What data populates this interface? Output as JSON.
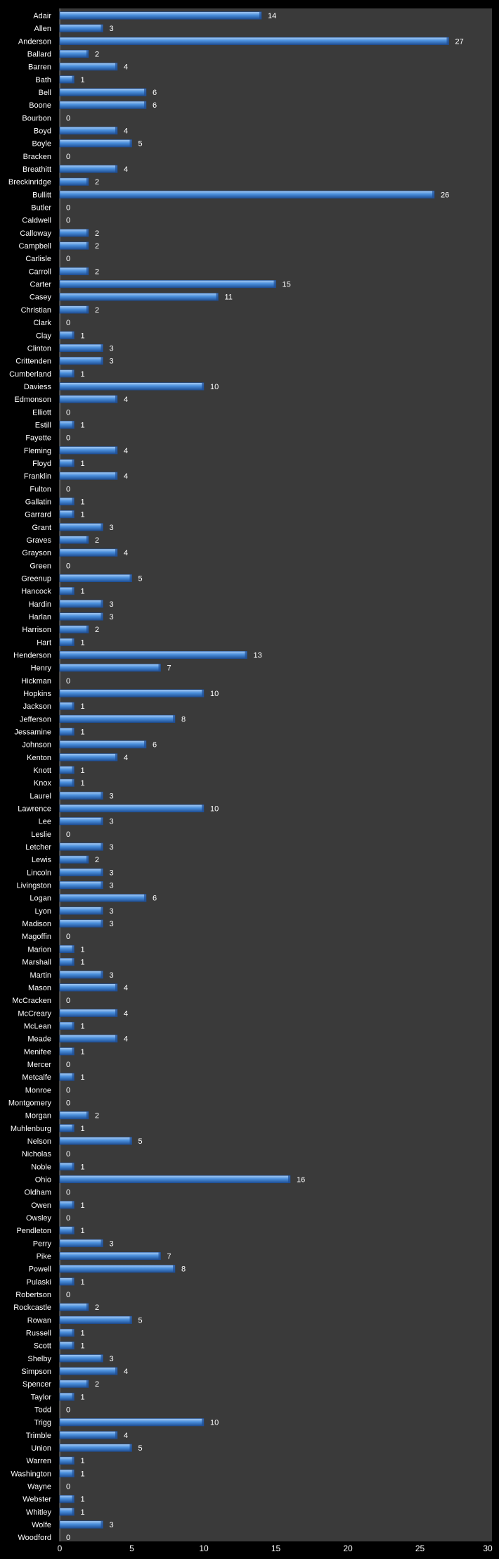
{
  "chart_data": {
    "type": "bar",
    "orientation": "horizontal",
    "title": "",
    "xlabel": "",
    "ylabel": "",
    "xlim": [
      0,
      30
    ],
    "x_ticks": [
      0,
      5,
      10,
      15,
      20,
      25,
      30
    ],
    "grid": false,
    "legend": "none",
    "colors": {
      "background": "#000000",
      "plot_area": "#3a3a3a",
      "bar": "#4a8fdc",
      "bar_light": "#a9cdf5",
      "bar_dark": "#1f4f95",
      "text": "#ffffff"
    },
    "categories": [
      "Adair",
      "Allen",
      "Anderson",
      "Ballard",
      "Barren",
      "Bath",
      "Bell",
      "Boone",
      "Bourbon",
      "Boyd",
      "Boyle",
      "Bracken",
      "Breathitt",
      "Breckinridge",
      "Bullitt",
      "Butler",
      "Caldwell",
      "Calloway",
      "Campbell",
      "Carlisle",
      "Carroll",
      "Carter",
      "Casey",
      "Christian",
      "Clark",
      "Clay",
      "Clinton",
      "Crittenden",
      "Cumberland",
      "Daviess",
      "Edmonson",
      "Elliott",
      "Estill",
      "Fayette",
      "Fleming",
      "Floyd",
      "Franklin",
      "Fulton",
      "Gallatin",
      "Garrard",
      "Grant",
      "Graves",
      "Grayson",
      "Green",
      "Greenup",
      "Hancock",
      "Hardin",
      "Harlan",
      "Harrison",
      "Hart",
      "Henderson",
      "Henry",
      "Hickman",
      "Hopkins",
      "Jackson",
      "Jefferson",
      "Jessamine",
      "Johnson",
      "Kenton",
      "Knott",
      "Knox",
      "Laurel",
      "Lawrence",
      "Lee",
      "Leslie",
      "Letcher",
      "Lewis",
      "Lincoln",
      "Livingston",
      "Logan",
      "Lyon",
      "Madison",
      "Magoffin",
      "Marion",
      "Marshall",
      "Martin",
      "Mason",
      "McCracken",
      "McCreary",
      "McLean",
      "Meade",
      "Menifee",
      "Mercer",
      "Metcalfe",
      "Monroe",
      "Montgomery",
      "Morgan",
      "Muhlenburg",
      "Nelson",
      "Nicholas",
      "Noble",
      "Ohio",
      "Oldham",
      "Owen",
      "Owsley",
      "Pendleton",
      "Perry",
      "Pike",
      "Powell",
      "Pulaski",
      "Robertson",
      "Rockcastle",
      "Rowan",
      "Russell",
      "Scott",
      "Shelby",
      "Simpson",
      "Spencer",
      "Taylor",
      "Todd",
      "Trigg",
      "Trimble",
      "Union",
      "Warren",
      "Washington",
      "Wayne",
      "Webster",
      "Whitley",
      "Wolfe",
      "Woodford"
    ],
    "values": [
      14,
      3,
      27,
      2,
      4,
      1,
      6,
      6,
      0,
      4,
      5,
      0,
      4,
      2,
      26,
      0,
      0,
      2,
      2,
      0,
      2,
      15,
      11,
      2,
      0,
      1,
      3,
      3,
      1,
      10,
      4,
      0,
      1,
      0,
      4,
      1,
      4,
      0,
      1,
      1,
      3,
      2,
      4,
      0,
      5,
      1,
      3,
      3,
      2,
      1,
      13,
      7,
      0,
      10,
      1,
      8,
      1,
      6,
      4,
      1,
      1,
      3,
      10,
      3,
      0,
      3,
      2,
      3,
      3,
      6,
      3,
      3,
      0,
      1,
      1,
      3,
      4,
      0,
      4,
      1,
      4,
      1,
      0,
      1,
      0,
      0,
      2,
      1,
      5,
      0,
      1,
      16,
      0,
      1,
      0,
      1,
      3,
      7,
      8,
      1,
      0,
      2,
      5,
      1,
      1,
      3,
      4,
      2,
      1,
      0,
      10,
      4,
      5,
      1,
      1,
      0,
      1,
      1,
      3,
      0
    ]
  }
}
